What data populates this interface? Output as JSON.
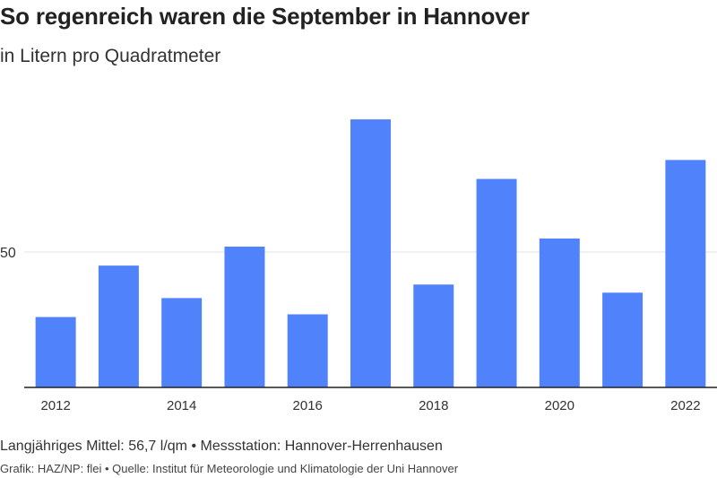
{
  "chart_data": {
    "type": "bar",
    "title": "So regenreich waren die September in Hannover",
    "subtitle": "in Litern pro Quadratmeter",
    "xlabel": "",
    "ylabel": "",
    "categories": [
      "2012",
      "2013",
      "2014",
      "2015",
      "2016",
      "2017",
      "2018",
      "2019",
      "2020",
      "2021",
      "2022"
    ],
    "values": [
      26,
      45,
      33,
      52,
      27,
      99,
      38,
      77,
      55,
      35,
      84
    ],
    "x_tick_labels": [
      "2012",
      "2014",
      "2016",
      "2018",
      "2020",
      "2022"
    ],
    "y_tick_labels": [
      "50"
    ],
    "ylim": [
      0,
      105
    ],
    "grid": true,
    "bar_color": "#5083fb"
  },
  "footer": {
    "note": "Langjähriges Mittel: 56,7 l/qm • Messstation: Hannover-Herrenhausen",
    "source": "Grafik: HAZ/NP: flei • Quelle: Institut für Meteorologie und Klimatologie der Uni Hannover"
  }
}
